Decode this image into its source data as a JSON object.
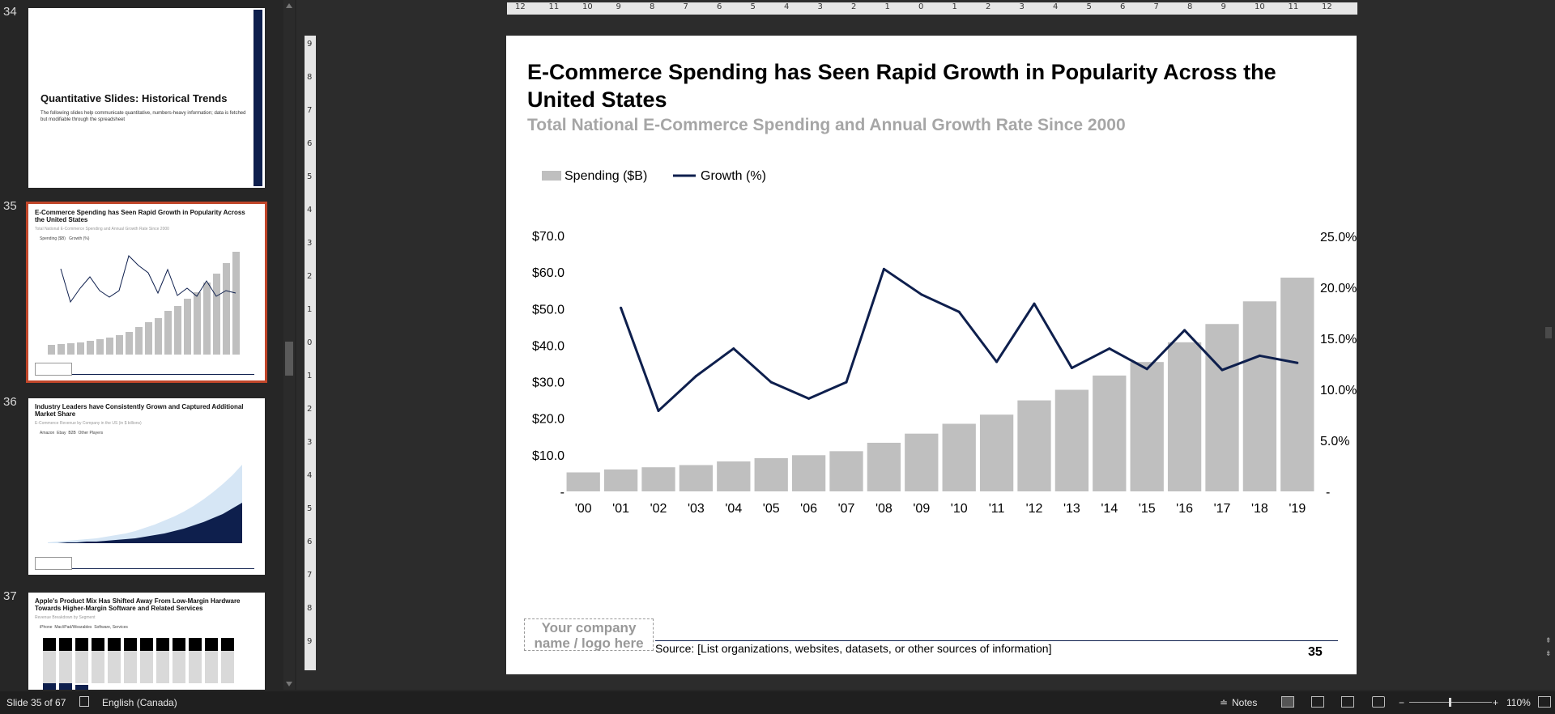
{
  "thumbnails": [
    {
      "number": "34",
      "title": "Quantitative Slides: Historical Trends",
      "body": "The following slides help communicate quantitative, numbers-heavy information; data is fetched but modifiable through the spreadsheet"
    },
    {
      "number": "35",
      "title": "E-Commerce Spending has Seen Rapid Growth in Popularity Across the United States",
      "subtitle": "Total National E-Commerce Spending and Annual Growth Rate Since 2000",
      "legend": [
        "Spending ($B)",
        "Growth (%)"
      ]
    },
    {
      "number": "36",
      "title": "Industry Leaders have Consistently Grown and Captured Additional Market Share",
      "subtitle": "E-Commerce Revenue by Company in the US (in $ billions)",
      "legend": [
        "Amazon",
        "Ebay",
        "B2B",
        "Other Players"
      ]
    },
    {
      "number": "37",
      "title": "Apple's Product Mix Has Shifted Away From Low-Margin Hardware Towards Higher-Margin Software and Related Services",
      "subtitle": "Revenue Breakdown by Segment",
      "legend": [
        "iPhone",
        "Mac/iPad/Wearables",
        "Software, Services"
      ]
    }
  ],
  "slide": {
    "title": "E-Commerce Spending has Seen Rapid Growth in Popularity Across the United States",
    "subtitle": "Total National E-Commerce Spending and Annual Growth Rate Since 2000",
    "logo_text": "Your company name / logo here",
    "source": "Source: [List organizations, websites, datasets, or other sources of information]",
    "page_number": "35"
  },
  "chart_data": {
    "type": "bar",
    "categories": [
      "'00",
      "'01",
      "'02",
      "'03",
      "'04",
      "'05",
      "'06",
      "'07",
      "'08",
      "'09",
      "'10",
      "'11",
      "'12",
      "'13",
      "'14",
      "'15",
      "'16",
      "'17",
      "'18",
      "'19"
    ],
    "series": [
      {
        "name": "Spending ($B)",
        "type": "bar",
        "axis": "left",
        "color": "#bfbfbf",
        "values": [
          5.2,
          6.0,
          6.6,
          7.2,
          8.2,
          9.1,
          9.9,
          11.0,
          13.3,
          15.8,
          18.5,
          21.0,
          24.9,
          27.8,
          31.7,
          35.4,
          40.8,
          45.8,
          52.0,
          58.5
        ]
      },
      {
        "name": "Growth (%)",
        "type": "line",
        "axis": "right",
        "color": "#0e1f4d",
        "values": [
          null,
          18.0,
          7.9,
          11.3,
          14.0,
          10.7,
          9.1,
          10.7,
          21.8,
          19.3,
          17.6,
          12.7,
          18.4,
          12.1,
          14.0,
          12.0,
          15.8,
          11.9,
          13.3,
          12.6
        ]
      }
    ],
    "left_axis": {
      "min": 0,
      "max": 70,
      "ticks": [
        "-",
        "$10.0",
        "$20.0",
        "$30.0",
        "$40.0",
        "$50.0",
        "$60.0",
        "$70.0"
      ]
    },
    "right_axis": {
      "min": 0,
      "max": 25,
      "ticks": [
        "-",
        "5.0%",
        "10.0%",
        "15.0%",
        "20.0%",
        "25.0%"
      ]
    },
    "legend_position": "top-left",
    "grid": false
  },
  "ruler_h": [
    "12",
    "11",
    "10",
    "9",
    "8",
    "7",
    "6",
    "5",
    "4",
    "3",
    "2",
    "1",
    "0",
    "1",
    "2",
    "3",
    "4",
    "5",
    "6",
    "7",
    "8",
    "9",
    "10",
    "11",
    "12"
  ],
  "ruler_v": [
    "9",
    "8",
    "7",
    "6",
    "5",
    "4",
    "3",
    "2",
    "1",
    "0",
    "1",
    "2",
    "3",
    "4",
    "5",
    "6",
    "7",
    "8",
    "9"
  ],
  "status": {
    "slide_info": "Slide 35 of 67",
    "language": "English (Canada)",
    "notes": "Notes",
    "zoom": "110%"
  }
}
